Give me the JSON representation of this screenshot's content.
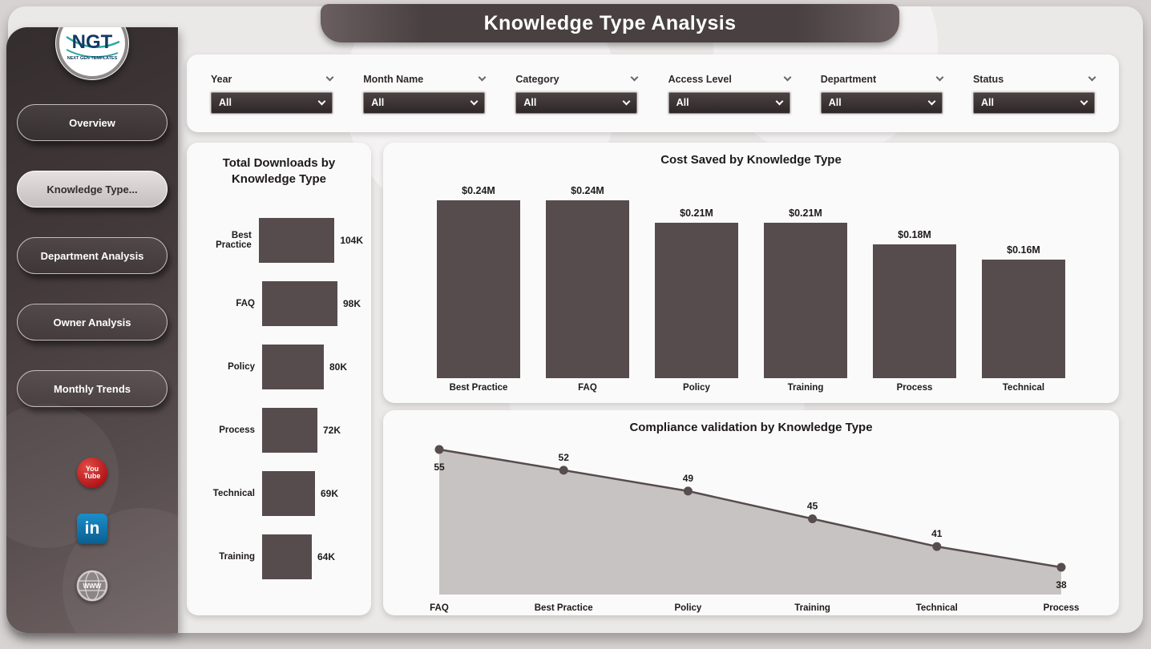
{
  "app": {
    "title": "Knowledge Type Analysis"
  },
  "sidebar": {
    "logo": {
      "text": "NGT",
      "subtext": "NEXT GEN TEMPLATES"
    },
    "items": [
      {
        "label": "Overview",
        "active": false
      },
      {
        "label": "Knowledge Type...",
        "active": true
      },
      {
        "label": "Department Analysis",
        "active": false
      },
      {
        "label": "Owner Analysis",
        "active": false
      },
      {
        "label": "Monthly Trends",
        "active": false
      }
    ],
    "social": [
      {
        "name": "youtube",
        "line1": "You",
        "line2": "Tube"
      },
      {
        "name": "linkedin",
        "label": "in"
      },
      {
        "name": "website",
        "label": "WWW"
      }
    ]
  },
  "filters": [
    {
      "label": "Year",
      "value": "All"
    },
    {
      "label": "Month Name",
      "value": "All"
    },
    {
      "label": "Category",
      "value": "All"
    },
    {
      "label": "Access Level",
      "value": "All"
    },
    {
      "label": "Department",
      "value": "All"
    },
    {
      "label": "Status",
      "value": "All"
    }
  ],
  "colors": {
    "bar": "#564c4d",
    "area_fill": "#c8c3c3",
    "line": "#574d4e",
    "sidebar_dark": "#342d2e",
    "sidebar_light": "#6e6162",
    "youtube_red": "#b31217",
    "linkedin_blue": "#0e76a8"
  },
  "chart_data": [
    {
      "type": "bar",
      "orientation": "horizontal",
      "title": "Total Downloads by Knowledge Type",
      "categories": [
        "Best Practice",
        "FAQ",
        "Policy",
        "Process",
        "Technical",
        "Training"
      ],
      "values": [
        104,
        98,
        80,
        72,
        69,
        64
      ],
      "value_labels": [
        "104K",
        "98K",
        "80K",
        "72K",
        "69K",
        "64K"
      ],
      "unit": "K downloads",
      "xlim": [
        0,
        110
      ],
      "grid": false
    },
    {
      "type": "bar",
      "orientation": "vertical",
      "title": "Cost Saved by Knowledge Type",
      "categories": [
        "Best Practice",
        "FAQ",
        "Policy",
        "Training",
        "Process",
        "Technical"
      ],
      "values": [
        0.24,
        0.24,
        0.21,
        0.21,
        0.18,
        0.16
      ],
      "value_labels": [
        "$0.24M",
        "$0.24M",
        "$0.21M",
        "$0.21M",
        "$0.18M",
        "$0.16M"
      ],
      "unit": "$M",
      "ylim": [
        0,
        0.26
      ],
      "grid": false
    },
    {
      "type": "area",
      "title": "Compliance validation by Knowledge Type",
      "categories": [
        "FAQ",
        "Best Practice",
        "Policy",
        "Training",
        "Technical",
        "Process"
      ],
      "values": [
        55,
        52,
        49,
        45,
        41,
        38
      ],
      "value_labels": [
        "55",
        "52",
        "49",
        "45",
        "41",
        "38"
      ],
      "ylim": [
        35,
        58
      ],
      "grid": false,
      "legend": "none"
    }
  ]
}
